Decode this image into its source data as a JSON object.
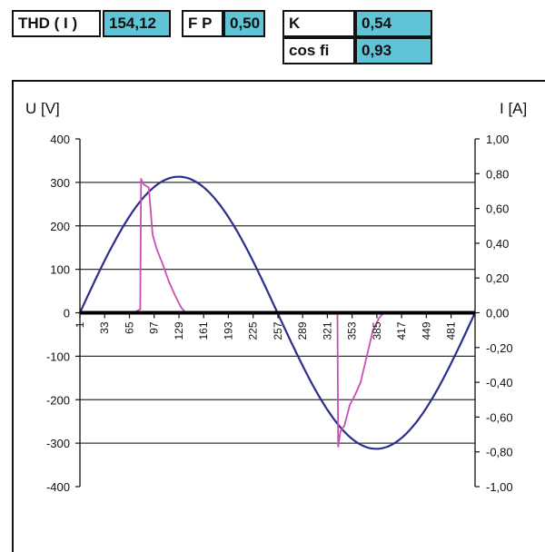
{
  "indicators": {
    "thd_label": "THD ( I )",
    "thd_value": "154,12",
    "fp_label": "F P",
    "fp_value": "0,50",
    "k_label": "K",
    "k_value": "0,54",
    "cosfi_label": "cos fi",
    "cosfi_value": "0,93"
  },
  "colors": {
    "value_fill": "#5fc4d6",
    "voltage_series": "#2a2f8f",
    "current_series": "#c84fb4",
    "zero_line": "#000000",
    "grid": "#333333"
  },
  "chart_data": {
    "type": "line",
    "title": "",
    "ylabel_left": "U [V]",
    "ylabel_right": "I [A]",
    "xlabel": "",
    "xlim": [
      1,
      512
    ],
    "ylim_left": [
      -400,
      400
    ],
    "ylim_right": [
      -1.0,
      1.0
    ],
    "grid": "horizontal",
    "x_tick_labels": [
      "1",
      "33",
      "65",
      "97",
      "129",
      "161",
      "193",
      "225",
      "257",
      "289",
      "321",
      "353",
      "385",
      "417",
      "449",
      "481"
    ],
    "y_left_tick_labels": [
      "400",
      "300",
      "200",
      "100",
      "0",
      "-100",
      "-200",
      "-300",
      "-400"
    ],
    "y_right_tick_labels": [
      "1,00",
      "0,80",
      "0,60",
      "0,40",
      "0,20",
      "0,00",
      "-0,20",
      "-0,40",
      "-0,60",
      "-0,80",
      "-1,00"
    ],
    "series": [
      {
        "axis": "left",
        "x": [
          1,
          33,
          65,
          97,
          129,
          145,
          161,
          193,
          225,
          257,
          289,
          321,
          353,
          385,
          401,
          417,
          449,
          481,
          512
        ],
        "y": [
          0,
          120,
          222,
          290,
          313,
          310,
          290,
          222,
          120,
          0,
          -120,
          -222,
          -290,
          -313,
          -310,
          -290,
          -222,
          -120,
          0
        ]
      },
      {
        "axis": "right",
        "x": [
          1,
          70,
          79,
          80,
          83,
          90,
          95,
          100,
          108,
          116,
          124,
          132,
          138,
          300,
          334,
          335,
          338,
          343,
          350,
          357,
          364,
          372,
          380,
          388,
          394,
          512
        ],
        "y": [
          0,
          0,
          0.02,
          0.77,
          0.74,
          0.72,
          0.45,
          0.37,
          0.28,
          0.18,
          0.1,
          0.03,
          0,
          0,
          0,
          -0.77,
          -0.68,
          -0.65,
          -0.53,
          -0.47,
          -0.4,
          -0.25,
          -0.1,
          -0.03,
          0,
          0
        ]
      }
    ]
  }
}
